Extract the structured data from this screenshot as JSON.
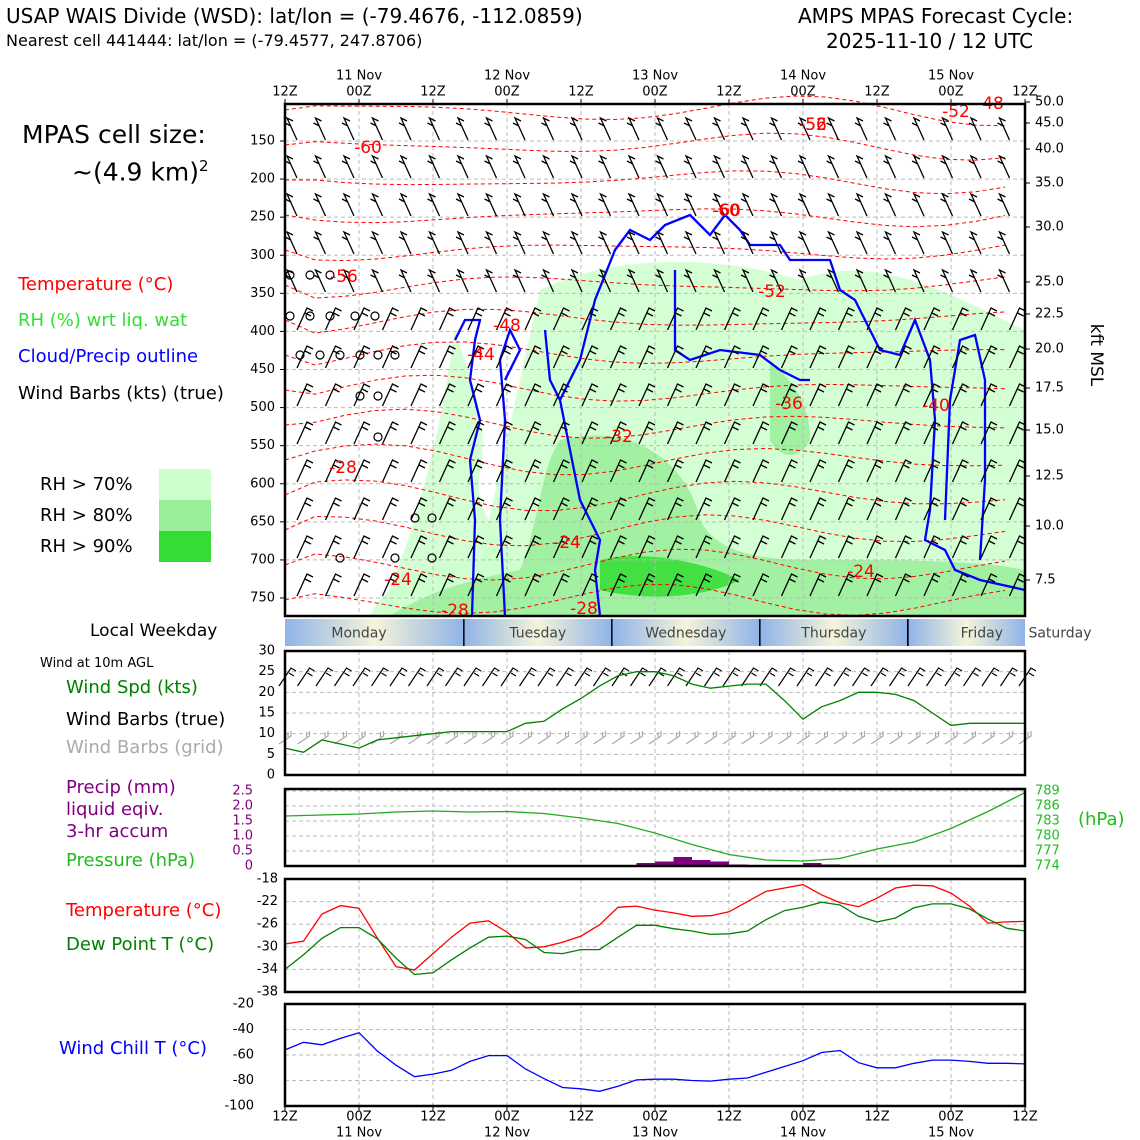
{
  "header": {
    "title_left_1": "USAP WAIS Divide (WSD): lat/lon = (-79.4676, -112.0859)",
    "title_left_2": "Nearest cell 441444: lat/lon = (-79.4577, 247.8706)",
    "title_right_1": "AMPS MPAS Forecast Cycle:",
    "title_right_2": "2025-11-10 / 12 UTC"
  },
  "cell_size": {
    "label": "MPAS cell size:",
    "value": "~(4.9 km)",
    "exponent": "2"
  },
  "legend": {
    "temperature": "Temperature (°C)",
    "rh": "RH (%) wrt liq. wat",
    "cloud": "Cloud/Precip outline",
    "barbs": "Wind Barbs (kts) (true)",
    "rh70": "RH > 70%",
    "rh80": "RH > 80%",
    "rh90": "RH > 90%",
    "colors": {
      "temp": "#ff0000",
      "rh": "#33cc33",
      "cloud": "#0000ff",
      "rh70": "#ccffcc",
      "rh80": "#99ee99",
      "rh90": "#33dd33"
    }
  },
  "time_axis": {
    "hour_labels": [
      "12Z",
      "00Z",
      "12Z",
      "00Z",
      "12Z",
      "00Z",
      "12Z",
      "00Z",
      "12Z",
      "00Z",
      "12Z"
    ],
    "date_labels": [
      "11 Nov",
      "12 Nov",
      "13 Nov",
      "14 Nov",
      "15 Nov"
    ]
  },
  "weekday": {
    "label": "Local Weekday",
    "days": [
      "Monday",
      "Tuesday",
      "Wednesday",
      "Thursday",
      "Friday",
      "Saturday"
    ]
  },
  "sfc_labels": {
    "wind_at": "Wind at 10m AGL",
    "wind_spd": "Wind Spd (kts)",
    "wind_barbs_true": "Wind Barbs (true)",
    "wind_barbs_grid": "Wind Barbs (grid)",
    "precip_1": "Precip (mm)",
    "precip_2": "liquid eqiv.",
    "precip_3": "3-hr accum",
    "pressure": "Pressure (hPa)",
    "pressure_unit": "(hPa)",
    "temperature": "Temperature (°C)",
    "dewpoint": "Dew Point T (°C)",
    "windchill": "Wind Chill T (°C)"
  },
  "chart_data": [
    {
      "type": "heatmap",
      "panel": "vertical cross-section",
      "y_left_ticks": [
        "150",
        "200",
        "250",
        "300",
        "350",
        "400",
        "450",
        "500",
        "550",
        "600",
        "650",
        "700",
        "750"
      ],
      "y_right_ticks": [
        "50.0",
        "45.0",
        "40.0",
        "35.0",
        "30.0",
        "25.0",
        "22.5",
        "20.0",
        "17.5",
        "15.0",
        "12.5",
        "10.0",
        "7.5"
      ],
      "y_right_label": "kft MSL",
      "temperature_contour_labels": [
        "-60",
        "-60",
        "-56",
        "-52",
        "-60",
        "-56",
        "-48",
        "-44",
        "-52",
        "-36",
        "-40",
        "-32",
        "-28",
        "-24",
        "-24",
        "-24",
        "-28",
        "-28",
        "-52",
        "-48"
      ]
    },
    {
      "type": "line",
      "panel": "wind speed",
      "ylim": [
        0,
        30
      ],
      "y_ticks": [
        "30",
        "25",
        "20",
        "15",
        "10",
        "5",
        "0"
      ],
      "x_hours": [
        0,
        3,
        6,
        9,
        12,
        15,
        18,
        21,
        24,
        27,
        30,
        33,
        36,
        39,
        42,
        45,
        48,
        51,
        54,
        57,
        60,
        63,
        66,
        69,
        72,
        75,
        78,
        81,
        84,
        87,
        90,
        93,
        96,
        99,
        102,
        105,
        108,
        111,
        114,
        117,
        120
      ],
      "series": [
        {
          "name": "Wind Spd (kts)",
          "color": "#008000",
          "values": [
            6.5,
            5.5,
            8.5,
            7.5,
            6.5,
            8.5,
            9,
            9.5,
            10,
            10.5,
            10.5,
            10.5,
            10.5,
            12.5,
            13,
            16,
            18.5,
            21.5,
            24,
            25,
            25,
            24,
            22,
            21,
            21.5,
            22,
            22,
            18,
            13.5,
            16.5,
            18,
            20,
            20,
            19.5,
            18,
            15,
            12,
            12.5,
            12.5,
            12.5,
            12.5
          ]
        }
      ]
    },
    {
      "type": "bar",
      "panel": "precip",
      "ylim": [
        0,
        2.5
      ],
      "y_ticks": [
        "2.5",
        "2.0",
        "1.5",
        "1.0",
        "0.5",
        "0"
      ],
      "bars": [
        {
          "start_hour": 57,
          "end_hour": 60,
          "value": 0.1
        },
        {
          "start_hour": 60,
          "end_hour": 63,
          "value": 0.15
        },
        {
          "start_hour": 63,
          "end_hour": 66,
          "value": 0.3
        },
        {
          "start_hour": 66,
          "end_hour": 69,
          "value": 0.2
        },
        {
          "start_hour": 69,
          "end_hour": 72,
          "value": 0.15
        },
        {
          "start_hour": 72,
          "end_hour": 75,
          "value": 0.05
        },
        {
          "start_hour": 84,
          "end_hour": 87,
          "value": 0.1
        },
        {
          "start_hour": 87,
          "end_hour": 90,
          "value": 0.05
        }
      ],
      "bar_color": "#800080"
    },
    {
      "type": "line",
      "panel": "pressure",
      "ylim": [
        774,
        789
      ],
      "y_ticks_right": [
        "789",
        "786",
        "783",
        "780",
        "777",
        "774"
      ],
      "x_hours": [
        0,
        6,
        12,
        18,
        24,
        30,
        36,
        42,
        48,
        54,
        60,
        66,
        72,
        78,
        84,
        90,
        96,
        102,
        108,
        114,
        120
      ],
      "series": [
        {
          "name": "Pressure (hPa)",
          "color": "#22aa22",
          "values": [
            784.0,
            784.2,
            784.4,
            784.8,
            785.0,
            784.8,
            784.9,
            784.5,
            783.6,
            782.5,
            780.6,
            778.3,
            776.3,
            775.2,
            775.0,
            775.5,
            777.4,
            778.8,
            781.5,
            784.9,
            788.7
          ]
        }
      ]
    },
    {
      "type": "line",
      "panel": "temperature",
      "ylim": [
        -38,
        -18
      ],
      "y_ticks": [
        "-18",
        "-22",
        "-26",
        "-30",
        "-34",
        "-38"
      ],
      "x_hours": [
        0,
        3,
        6,
        9,
        12,
        15,
        18,
        21,
        24,
        27,
        30,
        33,
        36,
        39,
        42,
        45,
        48,
        51,
        54,
        57,
        60,
        63,
        66,
        69,
        72,
        75,
        78,
        81,
        84,
        87,
        90,
        93,
        96,
        99,
        102,
        105,
        108,
        111,
        114,
        117,
        120
      ],
      "series": [
        {
          "name": "Temperature (°C)",
          "color": "#ff0000",
          "values": [
            -29.5,
            -29,
            -24.2,
            -22.7,
            -23.2,
            -28.5,
            -33.5,
            -34.1,
            -31.2,
            -28.3,
            -25.8,
            -25.4,
            -27.4,
            -30.2,
            -30,
            -29.2,
            -28.1,
            -26.1,
            -23,
            -22.8,
            -23.5,
            -24,
            -24.6,
            -24.5,
            -23.8,
            -22,
            -20.2,
            -19.6,
            -19,
            -20.8,
            -22.2,
            -22.9,
            -21.4,
            -19.6,
            -19.1,
            -19.2,
            -20.5,
            -22.8,
            -25.8,
            -25.6,
            -25.5
          ]
        },
        {
          "name": "Dew Point T (°C)",
          "color": "#008000",
          "values": [
            -34,
            -31.4,
            -28.5,
            -26.6,
            -26.6,
            -28.6,
            -32,
            -34.9,
            -34.6,
            -32.3,
            -30.2,
            -28.3,
            -28.1,
            -28.7,
            -31,
            -31.2,
            -30.5,
            -30.5,
            -28.3,
            -26.2,
            -26.2,
            -26.8,
            -27.2,
            -27.8,
            -27.7,
            -27.2,
            -25.2,
            -23.6,
            -23,
            -22.1,
            -22.6,
            -24.6,
            -25.6,
            -24.9,
            -23.1,
            -22.4,
            -22.4,
            -23.3,
            -25.1,
            -26.7,
            -27.2
          ]
        }
      ]
    },
    {
      "type": "line",
      "panel": "wind chill",
      "ylim": [
        -100,
        -20
      ],
      "y_ticks": [
        "-20",
        "-40",
        "-60",
        "-80",
        "-100"
      ],
      "x_hours": [
        0,
        3,
        6,
        9,
        12,
        15,
        18,
        21,
        24,
        27,
        30,
        33,
        36,
        39,
        42,
        45,
        48,
        51,
        54,
        57,
        60,
        63,
        66,
        69,
        72,
        75,
        78,
        81,
        84,
        87,
        90,
        93,
        96,
        99,
        102,
        105,
        108,
        111,
        114,
        117,
        120
      ],
      "series": [
        {
          "name": "Wind Chill T (°C)",
          "color": "#0000ff",
          "values": [
            -56,
            -50,
            -52,
            -47,
            -42.5,
            -57,
            -68,
            -77,
            -75,
            -72,
            -65,
            -60.5,
            -60.5,
            -71,
            -78.5,
            -85.5,
            -86.5,
            -88.5,
            -84.5,
            -79.5,
            -79,
            -79,
            -80,
            -80.5,
            -79,
            -78,
            -73.5,
            -69,
            -64.5,
            -58,
            -56.5,
            -66,
            -70,
            -70,
            -66.5,
            -64,
            -64,
            -65,
            -66.5,
            -66.5,
            -67
          ]
        }
      ]
    }
  ]
}
